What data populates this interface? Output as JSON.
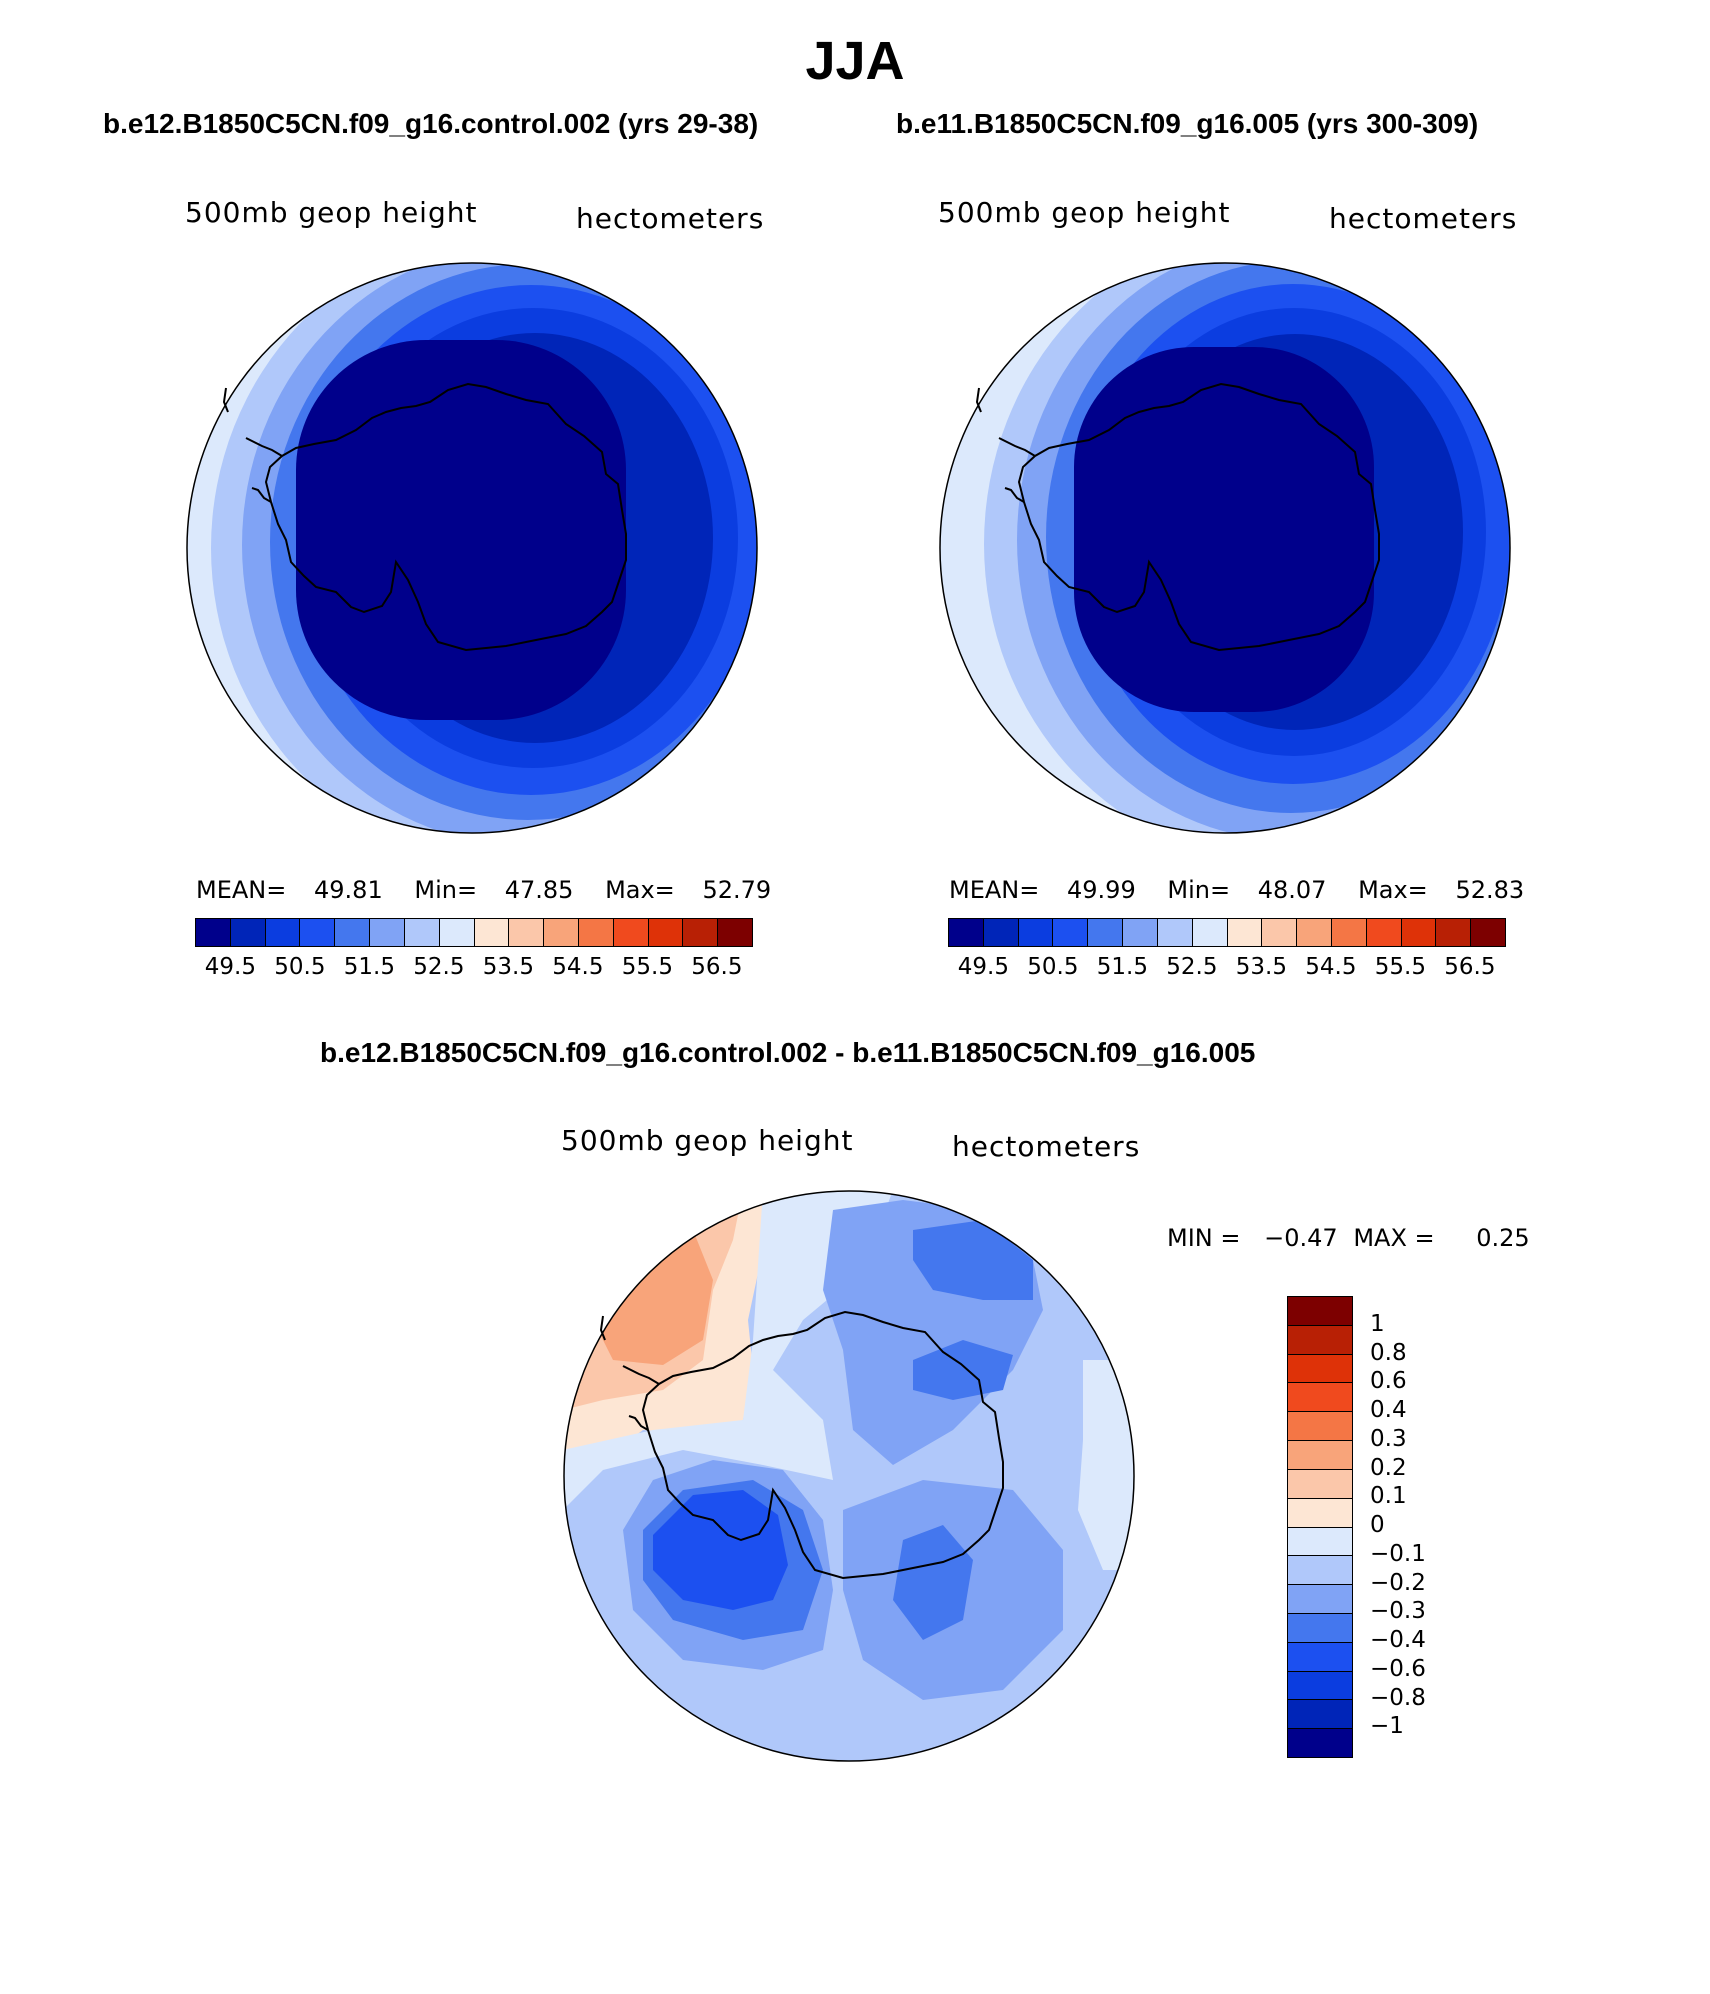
{
  "title": "JJA",
  "panels": [
    {
      "case": "b.e12.B1850C5CN.f09_g16.control.002 (yrs 29-38)",
      "variable": "500mb geop height",
      "units": "hectometers",
      "stats": {
        "mean_label": "MEAN=",
        "mean": "49.81",
        "min_label": "Min=",
        "min": "47.85",
        "max_label": "Max=",
        "max": "52.79"
      }
    },
    {
      "case": "b.e11.B1850C5CN.f09_g16.005 (yrs 300-309)",
      "variable": "500mb geop height",
      "units": "hectometers",
      "stats": {
        "mean_label": "MEAN=",
        "mean": "49.99",
        "min_label": "Min=",
        "min": "48.07",
        "max_label": "Max=",
        "max": "52.83"
      }
    }
  ],
  "colorbar_levels": [
    "49.5",
    "50.5",
    "51.5",
    "52.5",
    "53.5",
    "54.5",
    "55.5",
    "56.5"
  ],
  "colorbar_colors": [
    "#00008b",
    "#0025b8",
    "#0b3de0",
    "#1c50f0",
    "#4477ee",
    "#80a3f5",
    "#b0c8fa",
    "#dce9fc",
    "#fde6d4",
    "#fbc7aa",
    "#f8a47a",
    "#f47645",
    "#f04a1e",
    "#de3208",
    "#b82005",
    "#7d0000"
  ],
  "difference": {
    "title": "b.e12.B1850C5CN.f09_g16.control.002 - b.e11.B1850C5CN.f09_g16.005",
    "variable": "500mb geop height",
    "units": "hectometers",
    "min_label": "MIN =",
    "min": "−0.47",
    "max_label": "MAX =",
    "max": "0.25",
    "levels": [
      "1",
      "0.8",
      "0.6",
      "0.4",
      "0.3",
      "0.2",
      "0.1",
      "0",
      "−0.1",
      "−0.2",
      "−0.3",
      "−0.4",
      "−0.6",
      "−0.8",
      "−1"
    ],
    "colors": [
      "#7d0000",
      "#b82005",
      "#de3208",
      "#f04a1e",
      "#f47645",
      "#f8a47a",
      "#fbc7aa",
      "#fde6d4",
      "#dce9fc",
      "#b0c8fa",
      "#80a3f5",
      "#4477ee",
      "#1c50f0",
      "#0b3de0",
      "#0025b8",
      "#00008b"
    ]
  },
  "map_colors": {
    "c_49": "#00008b",
    "c_49_5": "#0025b8",
    "c_50": "#0b3de0",
    "c_50_5": "#1c50f0",
    "c_51": "#4477ee",
    "c_51_5": "#80a3f5",
    "c_52": "#b0c8fa",
    "c_52_5": "#dce9fc",
    "d_pos_03": "#f8a47a",
    "d_pos_02": "#fbc7aa",
    "d_pos_01": "#fde6d4",
    "d_neg_01": "#dce9fc",
    "d_neg_02": "#b0c8fa",
    "d_neg_03": "#80a3f5",
    "d_neg_04": "#4477ee",
    "d_neg_06": "#1c50f0"
  }
}
